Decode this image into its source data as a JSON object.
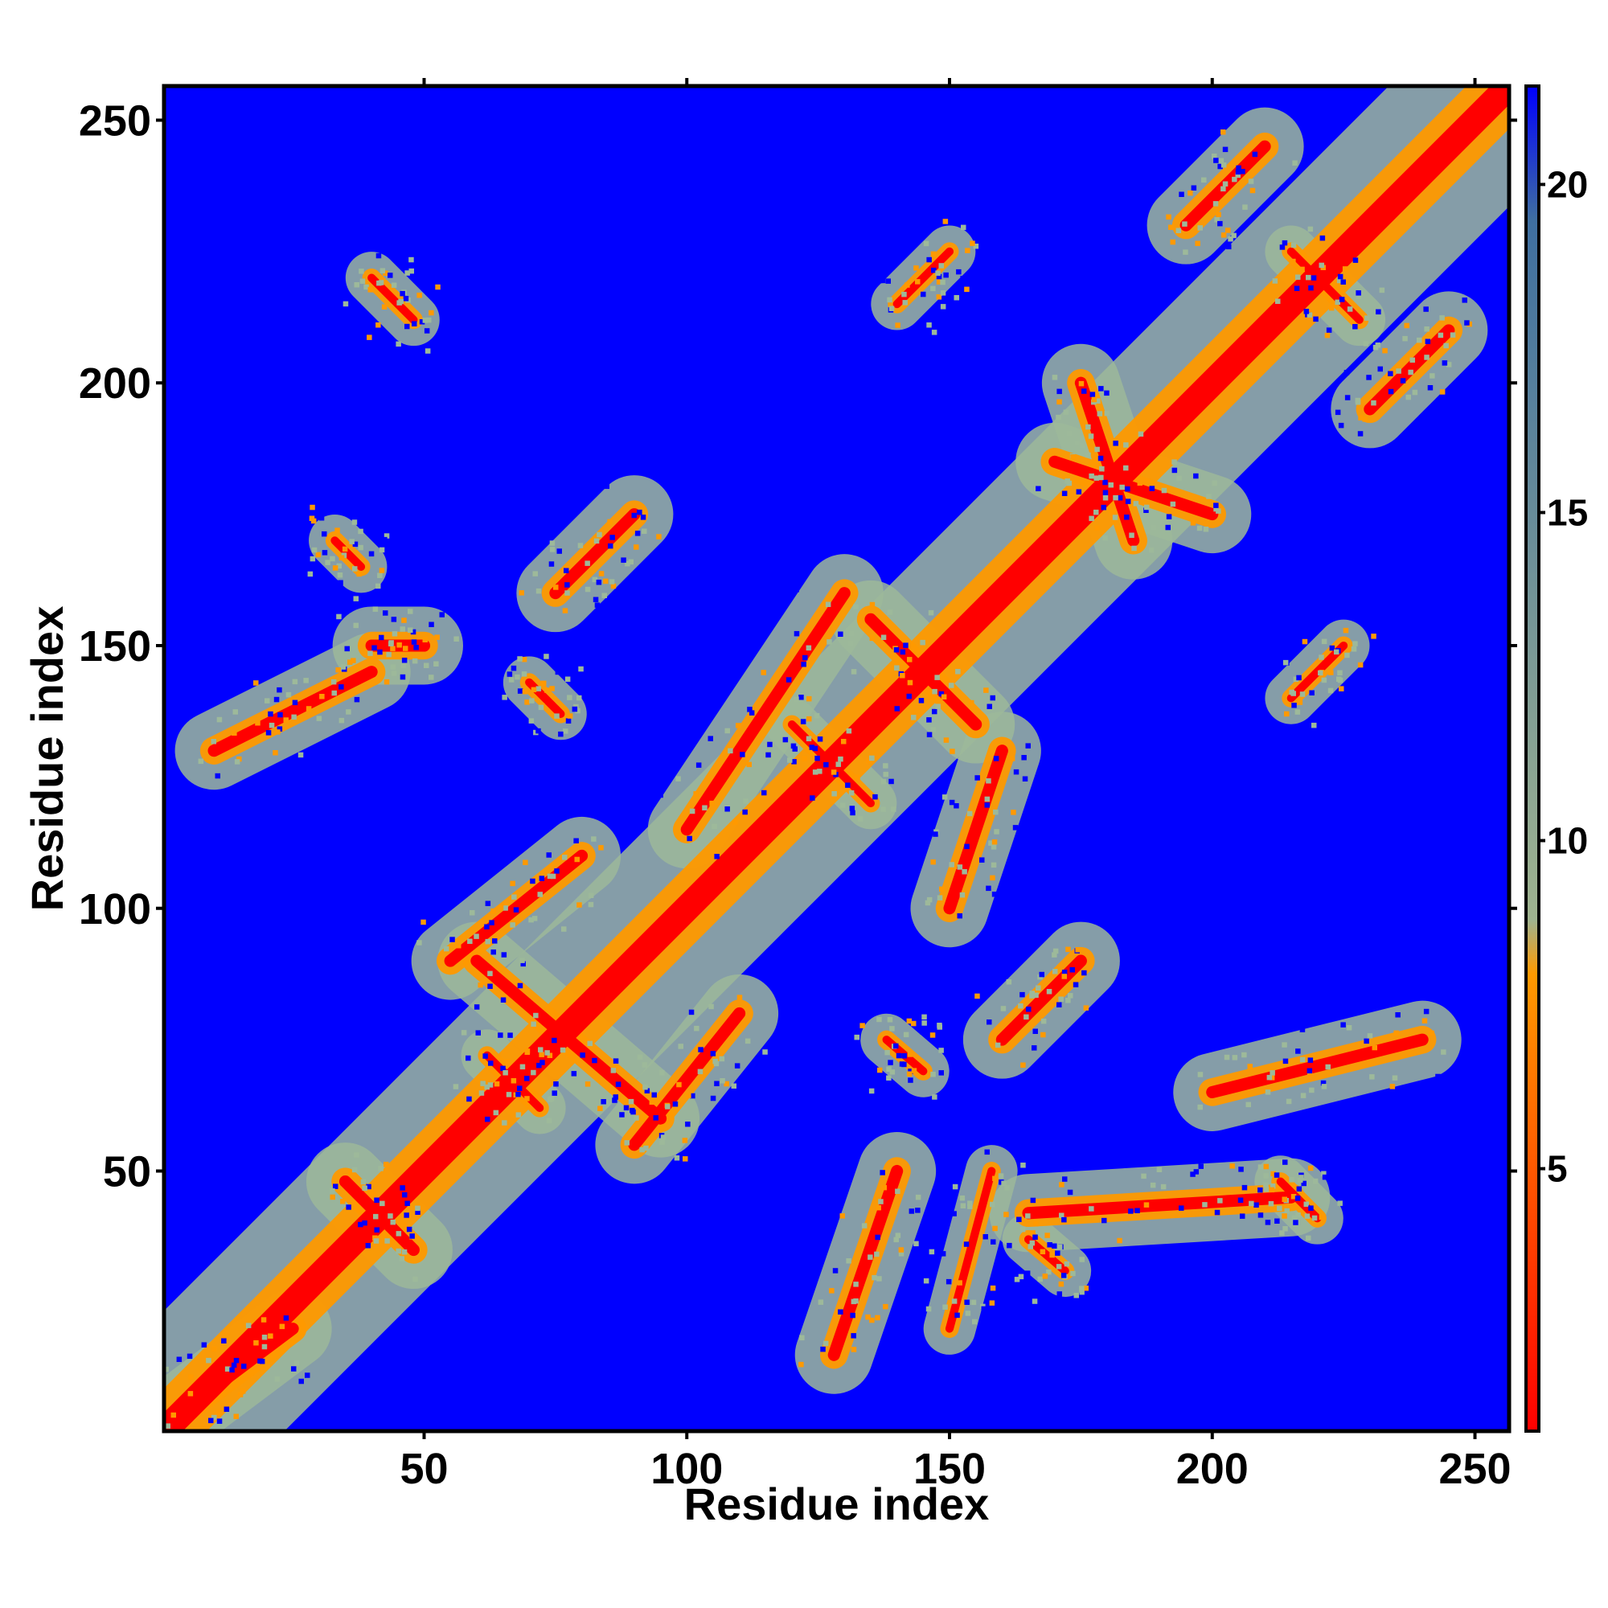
{
  "chart_data": {
    "type": "heatmap",
    "title": "",
    "xlabel": "Residue index",
    "ylabel": "Residue index",
    "xlim": [
      1,
      256
    ],
    "ylim": [
      1,
      256
    ],
    "x_ticks": [
      50,
      100,
      150,
      200,
      250
    ],
    "y_ticks": [
      50,
      100,
      150,
      200,
      250
    ],
    "n_residues": 256,
    "colorbar": {
      "range": [
        1,
        21.5
      ],
      "ticks": [
        5,
        10,
        15,
        20
      ],
      "colors": [
        "#ff0000",
        "#ff9a00",
        "#9fb38f",
        "#3f6fa0",
        "#0000ff"
      ],
      "stops": [
        0.0,
        0.34,
        0.38,
        0.9,
        1.0
      ]
    },
    "background_value": 21.5,
    "colormap": {
      "near": "#ff0000",
      "mid": "#ff9900",
      "contact": "#9db99a",
      "far": "#0000ff"
    },
    "description_of_values": "Pairwise residue distance map; symmetric about the diagonal",
    "contact_segments": [
      {
        "from": [
          1,
          1
        ],
        "to": [
          256,
          256
        ],
        "width": 4
      },
      {
        "from": [
          35,
          48
        ],
        "to": [
          48,
          35
        ],
        "width": 3
      },
      {
        "from": [
          40,
          220
        ],
        "to": [
          48,
          212
        ],
        "width": 2
      },
      {
        "from": [
          33,
          170
        ],
        "to": [
          38,
          165
        ],
        "width": 2
      },
      {
        "from": [
          70,
          143
        ],
        "to": [
          76,
          137
        ],
        "width": 2
      },
      {
        "from": [
          62,
          72
        ],
        "to": [
          72,
          62
        ],
        "width": 2
      },
      {
        "from": [
          40,
          150
        ],
        "to": [
          50,
          150
        ],
        "width": 3
      },
      {
        "from": [
          10,
          130
        ],
        "to": [
          40,
          145
        ],
        "width": 3
      },
      {
        "from": [
          135,
          155
        ],
        "to": [
          155,
          135
        ],
        "width": 3
      },
      {
        "from": [
          120,
          135
        ],
        "to": [
          135,
          120
        ],
        "width": 2
      },
      {
        "from": [
          213,
          48
        ],
        "to": [
          220,
          41
        ],
        "width": 2
      },
      {
        "from": [
          215,
          225
        ],
        "to": [
          228,
          212
        ],
        "width": 2
      },
      {
        "from": [
          138,
          75
        ],
        "to": [
          145,
          69
        ],
        "width": 2
      },
      {
        "from": [
          165,
          37
        ],
        "to": [
          172,
          31
        ],
        "width": 2
      },
      {
        "from": [
          128,
          15
        ],
        "to": [
          140,
          50
        ],
        "width": 3
      },
      {
        "from": [
          150,
          20
        ],
        "to": [
          158,
          50
        ],
        "width": 2
      },
      {
        "from": [
          165,
          42
        ],
        "to": [
          215,
          45
        ],
        "width": 3
      },
      {
        "from": [
          200,
          65
        ],
        "to": [
          240,
          75
        ],
        "width": 3
      },
      {
        "from": [
          215,
          140
        ],
        "to": [
          225,
          150
        ],
        "width": 2
      },
      {
        "from": [
          140,
          215
        ],
        "to": [
          150,
          225
        ],
        "width": 2
      },
      {
        "from": [
          100,
          115
        ],
        "to": [
          130,
          160
        ],
        "width": 3
      },
      {
        "from": [
          150,
          100
        ],
        "to": [
          160,
          130
        ],
        "width": 3
      },
      {
        "from": [
          170,
          185
        ],
        "to": [
          200,
          175
        ],
        "width": 3
      },
      {
        "from": [
          185,
          170
        ],
        "to": [
          175,
          200
        ],
        "width": 3
      },
      {
        "from": [
          195,
          230
        ],
        "to": [
          210,
          245
        ],
        "width": 3
      },
      {
        "from": [
          230,
          195
        ],
        "to": [
          245,
          210
        ],
        "width": 3
      },
      {
        "from": [
          5,
          5
        ],
        "to": [
          25,
          20
        ],
        "width": 3
      },
      {
        "from": [
          60,
          90
        ],
        "to": [
          95,
          60
        ],
        "width": 3
      },
      {
        "from": [
          75,
          160
        ],
        "to": [
          90,
          175
        ],
        "width": 3
      },
      {
        "from": [
          160,
          75
        ],
        "to": [
          175,
          90
        ],
        "width": 3
      },
      {
        "from": [
          90,
          55
        ],
        "to": [
          110,
          80
        ],
        "width": 3
      },
      {
        "from": [
          55,
          90
        ],
        "to": [
          80,
          110
        ],
        "width": 3
      }
    ]
  }
}
